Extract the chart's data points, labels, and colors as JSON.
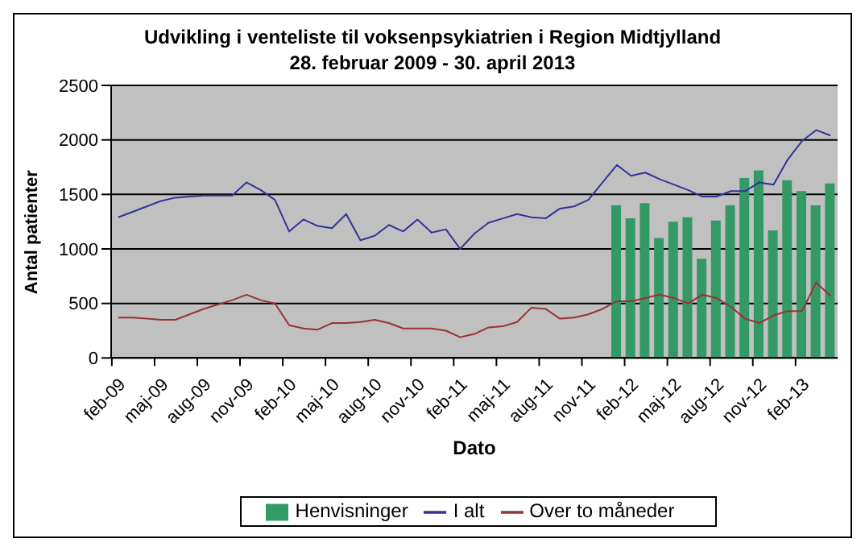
{
  "chart_data": {
    "type": "bar",
    "title": "Udvikling i venteliste til voksenpsykiatrien i Region Midtjylland",
    "subtitle": "28. februar 2009 - 30. april 2013",
    "xlabel": "Dato",
    "ylabel": "Antal patienter",
    "categories": [
      "feb-09",
      null,
      null,
      "maj-09",
      null,
      null,
      "aug-09",
      null,
      null,
      "nov-09",
      null,
      null,
      "feb-10",
      null,
      null,
      "maj-10",
      null,
      null,
      "aug-10",
      null,
      null,
      "nov-10",
      null,
      null,
      "feb-11",
      null,
      null,
      "maj-11",
      null,
      null,
      "aug-11",
      null,
      null,
      "nov-11",
      null,
      null,
      "feb-12",
      null,
      null,
      "maj-12",
      null,
      null,
      "aug-12",
      null,
      null,
      "nov-12",
      null,
      null,
      "feb-13",
      null,
      null
    ],
    "series": [
      {
        "name": "Henvisninger",
        "type": "bar",
        "color": "#339966",
        "values": [
          null,
          null,
          null,
          null,
          null,
          null,
          null,
          null,
          null,
          null,
          null,
          null,
          null,
          null,
          null,
          null,
          null,
          null,
          null,
          null,
          null,
          null,
          null,
          null,
          null,
          null,
          null,
          null,
          null,
          null,
          null,
          null,
          null,
          null,
          null,
          1400,
          1280,
          1420,
          1100,
          1250,
          1290,
          910,
          1260,
          1400,
          1650,
          1720,
          1170,
          1630,
          1530,
          1400,
          1600
        ]
      },
      {
        "name": "I alt",
        "type": "line",
        "color": "#333399",
        "values": [
          1290,
          1340,
          1390,
          1440,
          1470,
          1480,
          1490,
          1490,
          1490,
          1610,
          1540,
          1450,
          1160,
          1270,
          1210,
          1190,
          1320,
          1080,
          1120,
          1220,
          1160,
          1270,
          1150,
          1180,
          1000,
          1140,
          1240,
          1280,
          1320,
          1290,
          1280,
          1370,
          1390,
          1450,
          1610,
          1770,
          1670,
          1700,
          1640,
          1590,
          1540,
          1480,
          1480,
          1530,
          1530,
          1610,
          1590,
          1820,
          1990,
          2090,
          2040
        ]
      },
      {
        "name": "Over to måneder",
        "type": "line",
        "color": "#993333",
        "values": [
          370,
          370,
          360,
          350,
          350,
          400,
          450,
          490,
          530,
          580,
          530,
          500,
          300,
          270,
          260,
          320,
          320,
          330,
          350,
          320,
          270,
          270,
          270,
          250,
          190,
          220,
          280,
          290,
          330,
          460,
          450,
          360,
          370,
          400,
          450,
          520,
          520,
          550,
          580,
          550,
          500,
          580,
          550,
          470,
          360,
          320,
          390,
          430,
          430,
          690,
          570
        ]
      }
    ],
    "ylim": [
      0,
      2500
    ],
    "yticks": [
      0,
      500,
      1000,
      1500,
      2000,
      2500
    ],
    "grid": "y",
    "legend": "bottom",
    "marker": "none",
    "line_style": "solid"
  }
}
